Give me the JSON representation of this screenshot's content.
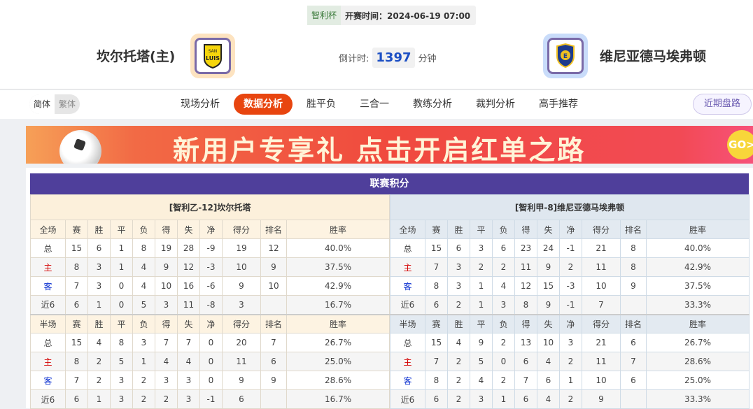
{
  "header": {
    "cup": "智利杯",
    "kickoff": "开赛时间：2024-06-19 07:00",
    "home_team": "坎尔托塔(主)",
    "away_team": "维尼亚德马埃弗顿",
    "countdown_label": "倒计时:",
    "countdown_value": "1397",
    "countdown_unit": "分钟",
    "home_logo_text": "SAN LUIS"
  },
  "nav": {
    "lang": [
      "简体",
      "繁体"
    ],
    "tabs": [
      "现场分析",
      "数据分析",
      "胜平负",
      "三合一",
      "教练分析",
      "裁判分析",
      "高手推荐"
    ],
    "active_tab": "数据分析",
    "recent_label": "近期盘路"
  },
  "banner": {
    "text": "新用户专享礼  点击开启红单之路",
    "go": "GO>"
  },
  "standings": {
    "title": "联赛积分",
    "columns": [
      "赛",
      "胜",
      "平",
      "负",
      "得",
      "失",
      "净",
      "得分",
      "排名",
      "胜率"
    ],
    "home": {
      "team": "[智利乙-12]坎尔托塔",
      "full": {
        "label": "全场",
        "rows": [
          [
            "总",
            "15",
            "6",
            "1",
            "8",
            "19",
            "28",
            "-9",
            "19",
            "12",
            "40.0%"
          ],
          [
            "主",
            "8",
            "3",
            "1",
            "4",
            "9",
            "12",
            "-3",
            "10",
            "9",
            "37.5%"
          ],
          [
            "客",
            "7",
            "3",
            "0",
            "4",
            "10",
            "16",
            "-6",
            "9",
            "10",
            "42.9%"
          ],
          [
            "近6",
            "6",
            "1",
            "0",
            "5",
            "3",
            "11",
            "-8",
            "3",
            "",
            "16.7%"
          ]
        ]
      },
      "half": {
        "label": "半场",
        "rows": [
          [
            "总",
            "15",
            "4",
            "8",
            "3",
            "7",
            "7",
            "0",
            "20",
            "7",
            "26.7%"
          ],
          [
            "主",
            "8",
            "2",
            "5",
            "1",
            "4",
            "4",
            "0",
            "11",
            "6",
            "25.0%"
          ],
          [
            "客",
            "7",
            "2",
            "3",
            "2",
            "3",
            "3",
            "0",
            "9",
            "9",
            "28.6%"
          ],
          [
            "近6",
            "6",
            "1",
            "3",
            "2",
            "2",
            "3",
            "-1",
            "6",
            "",
            "16.7%"
          ]
        ]
      }
    },
    "away": {
      "team": "[智利甲-8]维尼亚德马埃弗顿",
      "full": {
        "label": "全场",
        "rows": [
          [
            "总",
            "15",
            "6",
            "3",
            "6",
            "23",
            "24",
            "-1",
            "21",
            "8",
            "40.0%"
          ],
          [
            "主",
            "7",
            "3",
            "2",
            "2",
            "11",
            "9",
            "2",
            "11",
            "8",
            "42.9%"
          ],
          [
            "客",
            "8",
            "3",
            "1",
            "4",
            "12",
            "15",
            "-3",
            "10",
            "9",
            "37.5%"
          ],
          [
            "近6",
            "6",
            "2",
            "1",
            "3",
            "8",
            "9",
            "-1",
            "7",
            "",
            "33.3%"
          ]
        ]
      },
      "half": {
        "label": "半场",
        "rows": [
          [
            "总",
            "15",
            "4",
            "9",
            "2",
            "13",
            "10",
            "3",
            "21",
            "6",
            "26.7%"
          ],
          [
            "主",
            "7",
            "2",
            "5",
            "0",
            "6",
            "4",
            "2",
            "11",
            "7",
            "28.6%"
          ],
          [
            "客",
            "8",
            "2",
            "4",
            "2",
            "7",
            "6",
            "1",
            "10",
            "6",
            "25.0%"
          ],
          [
            "近6",
            "6",
            "2",
            "3",
            "1",
            "6",
            "4",
            "2",
            "9",
            "",
            "33.3%"
          ]
        ]
      }
    }
  },
  "colors": {
    "accent": "#e8450f",
    "title_bar": "#4f3f9b",
    "home_label": "#d40000",
    "away_label": "#0a2fd0"
  }
}
